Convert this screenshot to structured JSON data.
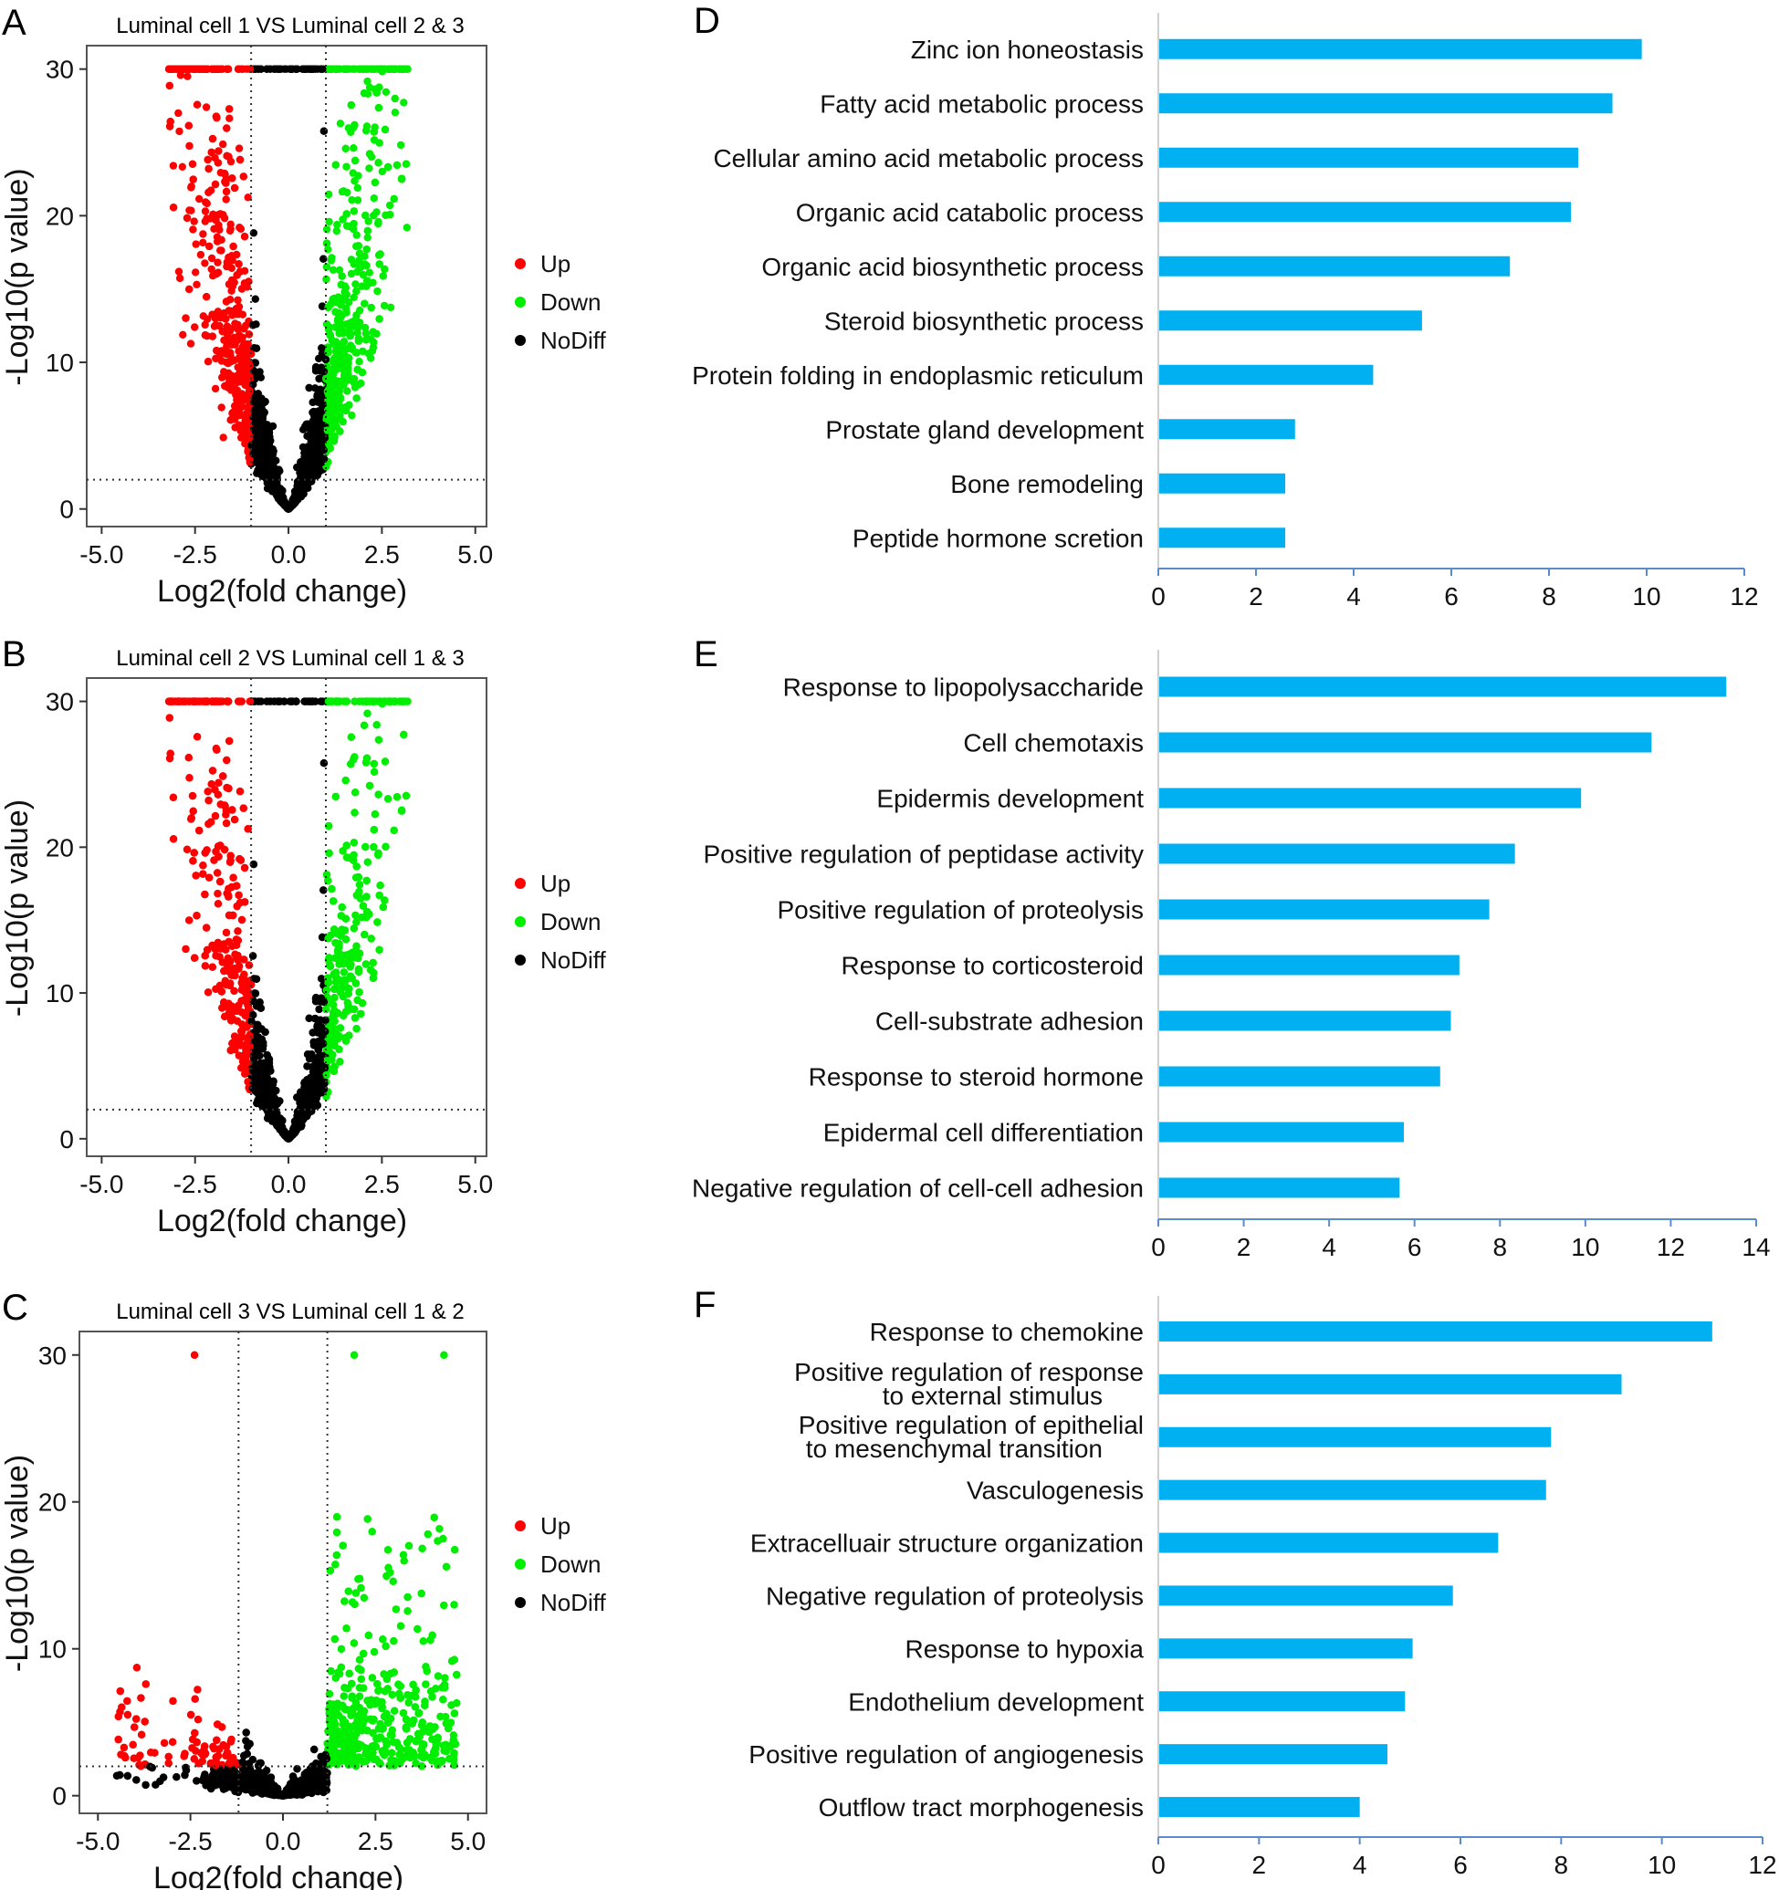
{
  "chart_data": [
    {
      "panel": "A",
      "type": "scatter",
      "title": "Luminal cell 1 VS Luminal cell 2 & 3",
      "xlabel": "Log2(fold change)",
      "ylabel": "-Log10(p value)",
      "xlim": [
        -5.4,
        5.3
      ],
      "ylim": [
        -1.2,
        31.6
      ],
      "xticks": [
        "-5.0",
        "-2.5",
        "0.0",
        "2.5",
        "5.0"
      ],
      "yticks": [
        "0",
        "10",
        "20",
        "30"
      ],
      "fc_threshold": [
        -1.0,
        1.0
      ],
      "p_threshold": 2,
      "y_cap": 30,
      "legend": [
        {
          "label": "Up",
          "color": "#ff0000"
        },
        {
          "label": "Down",
          "color": "#00ee00"
        },
        {
          "label": "NoDiff",
          "color": "#000000"
        }
      ],
      "legend_position": "right"
    },
    {
      "panel": "B",
      "type": "scatter",
      "title": "Luminal cell 2 VS Luminal cell 1 & 3",
      "xlabel": "Log2(fold change)",
      "ylabel": "-Log10(p value)",
      "xlim": [
        -5.4,
        5.3
      ],
      "ylim": [
        -1.2,
        31.6
      ],
      "xticks": [
        "-5.0",
        "-2.5",
        "0.0",
        "2.5",
        "5.0"
      ],
      "yticks": [
        "0",
        "10",
        "20",
        "30"
      ],
      "fc_threshold": [
        -1.0,
        1.0
      ],
      "p_threshold": 2,
      "y_cap": 30,
      "legend": [
        {
          "label": "Up",
          "color": "#ff0000"
        },
        {
          "label": "Down",
          "color": "#00ee00"
        },
        {
          "label": "NoDiff",
          "color": "#000000"
        }
      ],
      "legend_position": "right"
    },
    {
      "panel": "C",
      "type": "scatter",
      "title": "Luminal cell 3 VS Luminal cell 1 & 2",
      "xlabel": "Log2(fold change)",
      "ylabel": "-Log10(p value)",
      "xlim": [
        -5.5,
        5.5
      ],
      "ylim": [
        -1.2,
        31.6
      ],
      "xticks": [
        "-5.0",
        "-2.5",
        "0.0",
        "2.5",
        "5.0"
      ],
      "yticks": [
        "0",
        "10",
        "20",
        "30"
      ],
      "fc_threshold": [
        -1.2,
        1.2
      ],
      "p_threshold": 2,
      "y_cap": 30,
      "legend": [
        {
          "label": "Up",
          "color": "#ff0000"
        },
        {
          "label": "Down",
          "color": "#00ee00"
        },
        {
          "label": "NoDiff",
          "color": "#000000"
        }
      ],
      "legend_position": "right"
    },
    {
      "panel": "D",
      "type": "bar",
      "orientation": "horizontal",
      "color": "#00b0f0",
      "xlim": [
        0,
        12
      ],
      "xticks": [
        "0",
        "2",
        "4",
        "6",
        "8",
        "10",
        "12"
      ],
      "categories": [
        "Zinc ion honeostasis",
        "Fatty acid metabolic process",
        "Cellular amino acid metabolic process",
        "Organic acid catabolic process",
        "Organic acid biosynthetic process",
        "Steroid biosynthetic process",
        "Protein folding in endoplasmic reticulum",
        "Prostate gland development",
        "Bone remodeling",
        "Peptide hormone scretion"
      ],
      "values": [
        9.9,
        9.3,
        8.6,
        8.45,
        7.2,
        5.4,
        4.4,
        2.8,
        2.6,
        2.6
      ]
    },
    {
      "panel": "E",
      "type": "bar",
      "orientation": "horizontal",
      "color": "#00b0f0",
      "xlim": [
        0,
        14
      ],
      "xticks": [
        "0",
        "2",
        "4",
        "6",
        "8",
        "10",
        "12",
        "14"
      ],
      "categories": [
        "Response to lipopolysaccharide",
        "Cell chemotaxis",
        "Epidermis development",
        "Positive regulation of peptidase activity",
        "Positive regulation of proteolysis",
        "Response to corticosteroid",
        "Cell-substrate adhesion",
        "Response to steroid hormone",
        "Epidermal cell differentiation",
        "Negative regulation of cell-cell adhesion"
      ],
      "values": [
        13.3,
        11.55,
        9.9,
        8.35,
        7.75,
        7.05,
        6.85,
        6.6,
        5.75,
        5.65
      ]
    },
    {
      "panel": "F",
      "type": "bar",
      "orientation": "horizontal",
      "color": "#00b0f0",
      "xlim": [
        0,
        12
      ],
      "xticks": [
        "0",
        "2",
        "4",
        "6",
        "8",
        "10",
        "12"
      ],
      "categories": [
        "Response to chemokine",
        "Positive regulation of response\nto external stimulus",
        "Positive regulation of epithelial\nto mesenchymal transition",
        "Vasculogenesis",
        "Extracelluair structure organization",
        "Negative regulation of proteolysis",
        "Response to hypoxia",
        "Endothelium development",
        "Positive regulation of angiogenesis",
        "Outflow tract morphogenesis"
      ],
      "values": [
        11.0,
        9.2,
        7.8,
        7.7,
        6.75,
        5.85,
        5.05,
        4.9,
        4.55,
        4.0
      ]
    }
  ]
}
